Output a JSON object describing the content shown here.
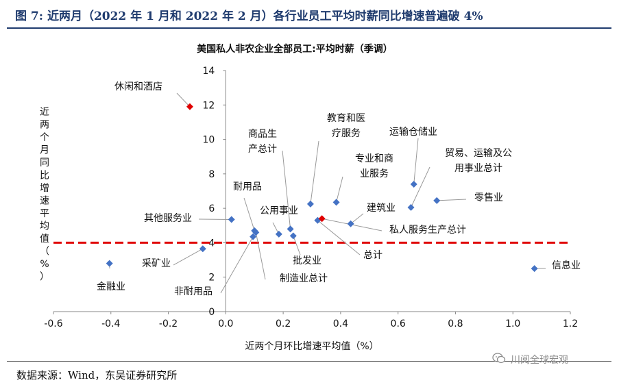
{
  "header": {
    "title": "图 7:  近两月（2022 年 1 月和 2022 年 2 月）各行业员工平均时薪同比增速普遍破 4%"
  },
  "footer": {
    "source": "数据来源：Wind，东吴证券研究所",
    "watermark": "川阅全球宏观",
    "watermark_icon": "wechat-icon"
  },
  "colors": {
    "header": "#1f3b6e",
    "points": "#4472c4",
    "highlight": "#e00000",
    "threshold": "#e00000"
  },
  "chart_data": {
    "type": "scatter",
    "title": "美国私人非农企业全部员工:平均时薪（季调）",
    "xlabel": "近两个月环比增速平均值（%）",
    "ylabel": "近两个月同比增速平均值（%）",
    "xlim": [
      -0.6,
      1.2
    ],
    "ylim": [
      0,
      14
    ],
    "xticks": [
      "-0.6",
      "-0.4",
      "-0.2",
      "0.0",
      "0.2",
      "0.4",
      "0.6",
      "0.8",
      "1.0",
      "1.2"
    ],
    "yticks": [
      "0",
      "2",
      "4",
      "6",
      "8",
      "10",
      "12",
      "14"
    ],
    "grid": false,
    "reference_line": {
      "y": 4
    },
    "points": [
      {
        "label": "休闲和酒店",
        "x": -0.125,
        "y": 11.9,
        "highlight": true
      },
      {
        "label": "金融业",
        "x": -0.405,
        "y": 2.8
      },
      {
        "label": "采矿业",
        "x": -0.08,
        "y": 3.65
      },
      {
        "label": "其他服务业",
        "x": 0.02,
        "y": 5.35
      },
      {
        "label": "非耐用品",
        "x": 0.095,
        "y": 4.35
      },
      {
        "label": "耐用品",
        "x": 0.1,
        "y": 4.7
      },
      {
        "label": "制造业总计",
        "x": 0.105,
        "y": 4.6
      },
      {
        "label": "公用事业",
        "x": 0.185,
        "y": 4.5
      },
      {
        "label": "商品生产总计",
        "x": 0.225,
        "y": 4.8
      },
      {
        "label": "批发业",
        "x": 0.235,
        "y": 4.4
      },
      {
        "label": "教育和医疗服务",
        "x": 0.295,
        "y": 6.25
      },
      {
        "label": "总计",
        "x": 0.32,
        "y": 5.3
      },
      {
        "label": "私人服务生产总计",
        "x": 0.335,
        "y": 5.4,
        "highlight": true
      },
      {
        "label": "专业和商业服务",
        "x": 0.385,
        "y": 6.35
      },
      {
        "label": "建筑业",
        "x": 0.435,
        "y": 5.1
      },
      {
        "label": "贸易、运输及公用事业总计",
        "x": 0.645,
        "y": 6.05
      },
      {
        "label": "运输仓储业",
        "x": 0.655,
        "y": 7.4
      },
      {
        "label": "零售业",
        "x": 0.735,
        "y": 6.45
      },
      {
        "label": "信息业",
        "x": 1.075,
        "y": 2.5
      }
    ]
  }
}
